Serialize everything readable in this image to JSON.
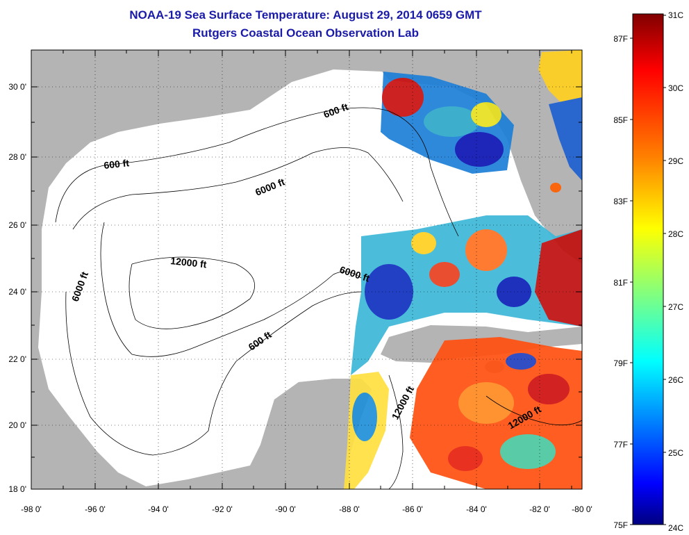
{
  "title": "NOAA-19 Sea Surface Temperature:  August 29, 2014 0659 GMT",
  "subtitle": "Rutgers Coastal Ocean Observation Lab",
  "axes": {
    "x_labels": [
      "-98 0'",
      "-96 0'",
      "-94 0'",
      "-92 0'",
      "-90 0'",
      "-88 0'",
      "-86 0'",
      "-84 0'",
      "-82 0'",
      "-80 0'"
    ],
    "y_labels": [
      "30 0'",
      "28 0'",
      "26 0'",
      "24 0'",
      "22 0'",
      "20 0'",
      "18 0'"
    ]
  },
  "contours": [
    "600 ft",
    "600 ft",
    "6000 ft",
    "6000 ft",
    "6000 ft",
    "12000 ft",
    "600 ft",
    "12000 ft",
    "12000 ft"
  ],
  "colorbar": {
    "celsius": [
      "31C",
      "30C",
      "29C",
      "28C",
      "27C",
      "26C",
      "25C",
      "24C"
    ],
    "fahrenheit": [
      "87F",
      "85F",
      "83F",
      "81F",
      "79F",
      "77F",
      "75F"
    ]
  },
  "colors": {
    "title": "#1a1aa8",
    "land": "#b4b4b4",
    "ocean": "#ffffff",
    "scale": [
      "#800000",
      "#ff0000",
      "#ff8000",
      "#ffff00",
      "#80ff80",
      "#00ffff",
      "#0080ff",
      "#0000ff",
      "#000080"
    ]
  }
}
